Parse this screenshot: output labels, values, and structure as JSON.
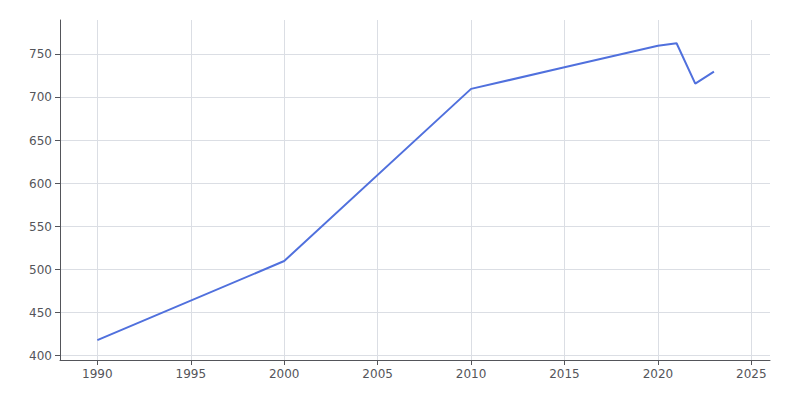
{
  "chart_data": {
    "type": "line",
    "x": [
      1990,
      2000,
      2010,
      2015,
      2020,
      2021,
      2022,
      2023
    ],
    "values": [
      418,
      510,
      710,
      735,
      760,
      763,
      716,
      730
    ],
    "xlim": [
      1988,
      2026
    ],
    "ylim": [
      395,
      790
    ],
    "xticks": [
      1990,
      1995,
      2000,
      2005,
      2010,
      2015,
      2020,
      2025
    ],
    "yticks": [
      400,
      450,
      500,
      550,
      600,
      650,
      700,
      750
    ],
    "grid": true
  }
}
